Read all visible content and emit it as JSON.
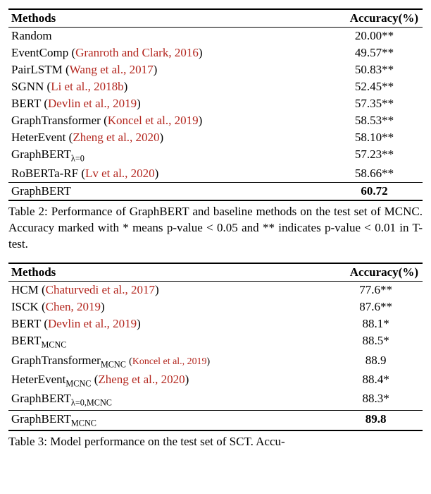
{
  "colors": {
    "citation": "#b3261e",
    "text": "#000000",
    "background": "#ffffff",
    "rule": "#000000"
  },
  "typography": {
    "font_family": "Times New Roman",
    "body_fontsize_pt": 13,
    "caption_fontsize_pt": 13
  },
  "table1": {
    "headers": {
      "method": "Methods",
      "accuracy": "Accuracy(%)"
    },
    "rows": [
      {
        "method": "Random",
        "cite": "",
        "acc": "20.00**"
      },
      {
        "method": "EventComp (",
        "cite": "Granroth and Clark, 2016",
        "tail": ")",
        "acc": "49.57**"
      },
      {
        "method": "PairLSTM (",
        "cite": "Wang et al., 2017",
        "tail": ")",
        "acc": "50.83**"
      },
      {
        "method": "SGNN (",
        "cite": "Li et al., 2018b",
        "tail": ")",
        "acc": "52.45**"
      },
      {
        "method": "BERT (",
        "cite": "Devlin et al., 2019",
        "tail": ")",
        "acc": "57.35**"
      },
      {
        "method": "GraphTransformer (",
        "cite": "Koncel et al., 2019",
        "tail": ")",
        "acc": "58.53**"
      },
      {
        "method": "HeterEvent (",
        "cite": "Zheng et al., 2020",
        "tail": ")",
        "acc": "58.10**"
      },
      {
        "method_html": "GraphBERT",
        "sub": "λ=0",
        "cite": "",
        "acc": "57.23**"
      },
      {
        "method": "RoBERTa-RF (",
        "cite": "Lv et al., 2020",
        "tail": ")",
        "acc": "58.66**"
      }
    ],
    "final": {
      "method": "GraphBERT",
      "acc": "60.72"
    },
    "caption": "Table 2: Performance of GraphBERT and baseline methods on the test set of MCNC. Accuracy marked with * means p-value < 0.05 and ** indicates p-value < 0.01 in T-test."
  },
  "table2": {
    "headers": {
      "method": "Methods",
      "accuracy": "Accuracy(%)"
    },
    "rows": [
      {
        "method": "HCM (",
        "cite": "Chaturvedi et al., 2017",
        "tail": ")",
        "acc": "77.6**"
      },
      {
        "method": "ISCK (",
        "cite": "Chen, 2019",
        "tail": ")",
        "acc": "87.6**"
      },
      {
        "method": "BERT (",
        "cite": "Devlin et al., 2019",
        "tail": ")",
        "acc": "88.1*"
      },
      {
        "method_html": "BERT",
        "sub": "MCNC",
        "cite": "",
        "acc": "88.5*"
      },
      {
        "method_html": "GraphTransformer",
        "sub": "MCNC",
        "cite": "Koncel et al., 2019",
        "small_cite": true,
        "paren": true,
        "acc": "88.9"
      },
      {
        "method_html": "HeterEvent",
        "sub": "MCNC",
        "cite": "Zheng et al., 2020",
        "paren": true,
        "acc": "88.4*"
      },
      {
        "method_html": "GraphBERT",
        "sub": "λ=0,MCNC",
        "cite": "",
        "acc": "88.3*"
      }
    ],
    "final": {
      "method_html": "GraphBERT",
      "sub": "MCNC",
      "acc": "89.8"
    },
    "caption_prefix": "Table 3: Model performance on the test set of SCT. Accu-"
  }
}
